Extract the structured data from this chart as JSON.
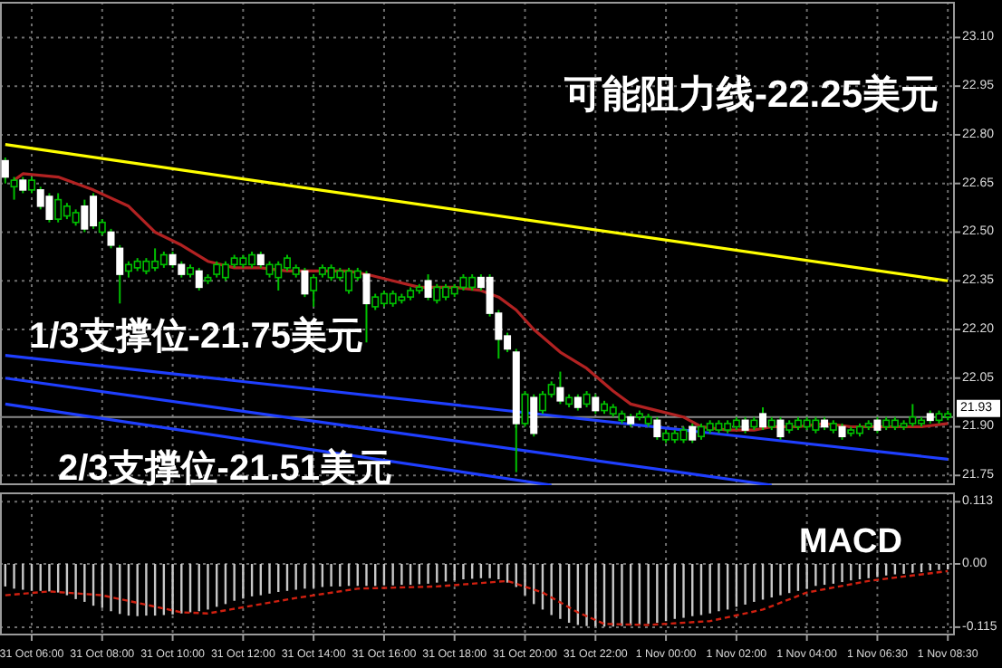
{
  "chart_data": [
    {
      "type": "candlestick",
      "categories": [
        null,
        null,
        null,
        null,
        null,
        null,
        null,
        null,
        null,
        null,
        null,
        null,
        null,
        null,
        null,
        null,
        null,
        null,
        null,
        null,
        null,
        null,
        null,
        null,
        null,
        null,
        null,
        null,
        null,
        null,
        null,
        null,
        null,
        null,
        null,
        null,
        null,
        null,
        null,
        null,
        null,
        null,
        null,
        null,
        null,
        null,
        null,
        null,
        null,
        null,
        null,
        null,
        null,
        null,
        null,
        null,
        null,
        null,
        null,
        null,
        null,
        null,
        null,
        null,
        null,
        null,
        null,
        null,
        null,
        null,
        null,
        null,
        null,
        null,
        null,
        null,
        null,
        null,
        null,
        null,
        null,
        null,
        null,
        null,
        null,
        null,
        null,
        null,
        null,
        null,
        null,
        null,
        null,
        null,
        null,
        null,
        null,
        null,
        null,
        null,
        null,
        null,
        null,
        null,
        null,
        null,
        null,
        null
      ],
      "ohlc": [
        [
          22.72,
          22.73,
          22.65,
          22.67
        ],
        [
          22.64,
          22.67,
          22.6,
          22.66
        ],
        [
          22.66,
          22.67,
          22.62,
          22.63
        ],
        [
          22.63,
          22.67,
          22.62,
          22.66
        ],
        [
          22.63,
          22.64,
          22.57,
          22.58
        ],
        [
          22.61,
          22.62,
          22.53,
          22.54
        ],
        [
          22.54,
          22.62,
          22.53,
          22.6
        ],
        [
          22.55,
          22.59,
          22.54,
          22.58
        ],
        [
          22.53,
          22.57,
          22.52,
          22.56
        ],
        [
          22.58,
          22.6,
          22.5,
          22.51
        ],
        [
          22.61,
          22.62,
          22.51,
          22.52
        ],
        [
          22.5,
          22.54,
          22.49,
          22.53
        ],
        [
          22.5,
          22.51,
          22.45,
          22.46
        ],
        [
          22.45,
          22.46,
          22.28,
          22.37
        ],
        [
          22.38,
          22.41,
          22.36,
          22.4
        ],
        [
          22.39,
          22.42,
          22.38,
          22.41
        ],
        [
          22.38,
          22.42,
          22.37,
          22.41
        ],
        [
          22.39,
          22.45,
          22.38,
          22.41
        ],
        [
          22.4,
          22.44,
          22.39,
          22.43
        ],
        [
          22.43,
          22.44,
          22.39,
          22.4
        ],
        [
          22.4,
          22.41,
          22.36,
          22.37
        ],
        [
          22.37,
          22.4,
          22.36,
          22.39
        ],
        [
          22.38,
          22.39,
          22.32,
          22.33
        ],
        [
          22.35,
          22.37,
          22.34,
          22.36
        ],
        [
          22.37,
          22.41,
          22.36,
          22.4
        ],
        [
          22.36,
          22.41,
          22.35,
          22.4
        ],
        [
          22.4,
          22.43,
          22.39,
          22.42
        ],
        [
          22.4,
          22.43,
          22.39,
          22.42
        ],
        [
          22.4,
          22.44,
          22.39,
          22.43
        ],
        [
          22.43,
          22.44,
          22.39,
          22.4
        ],
        [
          22.37,
          22.41,
          22.36,
          22.4
        ],
        [
          22.36,
          22.41,
          22.32,
          22.4
        ],
        [
          22.39,
          22.43,
          22.38,
          22.42
        ],
        [
          22.37,
          22.4,
          22.36,
          22.39
        ],
        [
          22.38,
          22.39,
          22.3,
          22.31
        ],
        [
          22.32,
          22.37,
          22.27,
          22.36
        ],
        [
          22.37,
          22.4,
          22.36,
          22.39
        ],
        [
          22.36,
          22.4,
          22.35,
          22.39
        ],
        [
          22.36,
          22.39,
          22.35,
          22.38
        ],
        [
          22.32,
          22.39,
          22.31,
          22.38
        ],
        [
          22.36,
          22.39,
          22.35,
          22.38
        ],
        [
          22.37,
          22.38,
          22.16,
          22.28
        ],
        [
          22.27,
          22.31,
          22.26,
          22.3
        ],
        [
          22.28,
          22.32,
          22.27,
          22.31
        ],
        [
          22.28,
          22.32,
          22.27,
          22.31
        ],
        [
          22.29,
          22.31,
          22.28,
          22.3
        ],
        [
          22.3,
          22.33,
          22.29,
          22.32
        ],
        [
          22.32,
          22.34,
          22.31,
          22.33
        ],
        [
          22.35,
          22.37,
          22.29,
          22.3
        ],
        [
          22.29,
          22.34,
          22.28,
          22.33
        ],
        [
          22.3,
          22.34,
          22.29,
          22.33
        ],
        [
          22.31,
          22.34,
          22.3,
          22.33
        ],
        [
          22.33,
          22.37,
          22.32,
          22.36
        ],
        [
          22.33,
          22.37,
          22.32,
          22.36
        ],
        [
          22.36,
          22.37,
          22.32,
          22.33
        ],
        [
          22.36,
          22.37,
          22.24,
          22.25
        ],
        [
          22.25,
          22.26,
          22.11,
          22.17
        ],
        [
          22.18,
          22.19,
          22.13,
          22.14
        ],
        [
          22.13,
          22.14,
          21.76,
          21.91
        ],
        [
          21.91,
          22.01,
          21.9,
          22.0
        ],
        [
          21.99,
          22.0,
          21.87,
          21.88
        ],
        [
          21.95,
          22.01,
          21.94,
          22.0
        ],
        [
          22.0,
          22.04,
          21.99,
          22.03
        ],
        [
          22.02,
          22.07,
          21.97,
          21.98
        ],
        [
          21.97,
          22.0,
          21.96,
          21.99
        ],
        [
          21.99,
          22.0,
          21.95,
          21.96
        ],
        [
          21.97,
          22.01,
          21.96,
          22.0
        ],
        [
          21.99,
          22.0,
          21.94,
          21.95
        ],
        [
          21.95,
          21.98,
          21.94,
          21.97
        ],
        [
          21.94,
          21.97,
          21.93,
          21.96
        ],
        [
          21.92,
          21.95,
          21.91,
          21.94
        ],
        [
          21.93,
          21.94,
          21.9,
          21.91
        ],
        [
          21.93,
          21.95,
          21.92,
          21.94
        ],
        [
          21.91,
          21.94,
          21.9,
          21.93
        ],
        [
          21.92,
          21.93,
          21.86,
          21.87
        ],
        [
          21.86,
          21.89,
          21.85,
          21.88
        ],
        [
          21.86,
          21.89,
          21.85,
          21.88
        ],
        [
          21.86,
          21.9,
          21.85,
          21.89
        ],
        [
          21.9,
          21.91,
          21.85,
          21.86
        ],
        [
          21.87,
          21.91,
          21.86,
          21.9
        ],
        [
          21.89,
          21.92,
          21.88,
          21.91
        ],
        [
          21.89,
          21.92,
          21.88,
          21.91
        ],
        [
          21.89,
          21.92,
          21.88,
          21.91
        ],
        [
          21.9,
          21.93,
          21.89,
          21.92
        ],
        [
          21.92,
          21.93,
          21.88,
          21.89
        ],
        [
          21.9,
          21.93,
          21.89,
          21.92
        ],
        [
          21.94,
          21.96,
          21.89,
          21.9
        ],
        [
          21.9,
          21.93,
          21.89,
          21.92
        ],
        [
          21.92,
          21.93,
          21.86,
          21.87
        ],
        [
          21.89,
          21.92,
          21.88,
          21.91
        ],
        [
          21.9,
          21.93,
          21.89,
          21.92
        ],
        [
          21.9,
          21.93,
          21.89,
          21.92
        ],
        [
          21.89,
          21.93,
          21.88,
          21.92
        ],
        [
          21.92,
          21.93,
          21.89,
          21.9
        ],
        [
          21.89,
          21.92,
          21.88,
          21.91
        ],
        [
          21.9,
          21.91,
          21.86,
          21.87
        ],
        [
          21.88,
          21.9,
          21.87,
          21.89
        ],
        [
          21.88,
          21.91,
          21.87,
          21.9
        ],
        [
          21.9,
          21.92,
          21.89,
          21.91
        ],
        [
          21.92,
          21.93,
          21.88,
          21.89
        ],
        [
          21.9,
          21.93,
          21.89,
          21.92
        ],
        [
          21.9,
          21.93,
          21.89,
          21.92
        ],
        [
          21.9,
          21.92,
          21.89,
          21.91
        ],
        [
          21.91,
          21.97,
          21.9,
          21.93
        ],
        [
          21.91,
          21.93,
          21.9,
          21.92
        ],
        [
          21.94,
          21.95,
          21.91,
          21.92
        ],
        [
          21.92,
          21.95,
          21.91,
          21.94
        ],
        [
          21.93,
          21.95,
          21.92,
          21.94
        ]
      ],
      "series": [
        {
          "type": "line",
          "color": "#b22222",
          "values": [
            null,
            22.66,
            22.68,
            null,
            null,
            null,
            22.67,
            null,
            null,
            null,
            22.63,
            null,
            null,
            null,
            22.58,
            null,
            null,
            22.5,
            null,
            null,
            22.46,
            null,
            null,
            22.41,
            null,
            null,
            22.39,
            null,
            null,
            22.39,
            null,
            null,
            22.38,
            null,
            null,
            22.38,
            null,
            null,
            null,
            22.38,
            null,
            22.37,
            null,
            null,
            22.35,
            null,
            null,
            22.33,
            null,
            null,
            null,
            22.33,
            null,
            null,
            22.32,
            null,
            22.3,
            null,
            22.26,
            null,
            22.2,
            null,
            null,
            22.13,
            null,
            null,
            22.08,
            null,
            null,
            22.01,
            null,
            21.97,
            null,
            null,
            21.95,
            null,
            null,
            21.93,
            null,
            21.9,
            null,
            null,
            21.89,
            null,
            null,
            21.89,
            null,
            21.9,
            null,
            null,
            21.9,
            null,
            null,
            21.91,
            null,
            null,
            21.9,
            null,
            21.9,
            null,
            null,
            21.9,
            null,
            null,
            21.9,
            null,
            null,
            21.91
          ]
        },
        {
          "type": "line",
          "color": "#ffff00",
          "values": [
            22.77,
            null,
            null,
            null,
            null,
            null,
            null,
            null,
            null,
            null,
            null,
            null,
            null,
            null,
            null,
            null,
            null,
            null,
            null,
            null,
            null,
            null,
            null,
            null,
            null,
            null,
            null,
            null,
            null,
            null,
            null,
            null,
            null,
            null,
            null,
            null,
            null,
            null,
            null,
            null,
            null,
            null,
            null,
            null,
            null,
            null,
            null,
            null,
            null,
            null,
            null,
            null,
            null,
            null,
            null,
            null,
            null,
            null,
            null,
            null,
            null,
            null,
            null,
            null,
            null,
            null,
            null,
            null,
            null,
            null,
            null,
            null,
            null,
            null,
            null,
            null,
            null,
            null,
            null,
            null,
            null,
            null,
            null,
            null,
            null,
            null,
            null,
            null,
            null,
            null,
            null,
            null,
            null,
            null,
            null,
            null,
            null,
            null,
            null,
            null,
            null,
            null,
            null,
            null,
            null,
            null,
            null,
            22.35
          ]
        },
        {
          "type": "line",
          "color": "#1f3fff",
          "values": [
            22.12,
            null,
            null,
            null,
            null,
            null,
            null,
            null,
            null,
            null,
            null,
            null,
            null,
            null,
            null,
            null,
            null,
            null,
            null,
            null,
            null,
            null,
            null,
            null,
            null,
            null,
            null,
            null,
            null,
            null,
            null,
            null,
            null,
            null,
            null,
            null,
            null,
            null,
            null,
            null,
            null,
            null,
            null,
            null,
            null,
            null,
            null,
            null,
            null,
            null,
            null,
            null,
            null,
            null,
            null,
            null,
            null,
            null,
            null,
            null,
            null,
            null,
            null,
            null,
            null,
            null,
            null,
            null,
            null,
            null,
            null,
            null,
            null,
            null,
            null,
            null,
            null,
            null,
            null,
            null,
            null,
            null,
            null,
            null,
            null,
            null,
            null,
            null,
            null,
            null,
            null,
            null,
            null,
            null,
            null,
            null,
            null,
            null,
            null,
            null,
            null,
            null,
            null,
            null,
            null,
            null,
            null,
            21.8
          ]
        },
        {
          "type": "line",
          "color": "#1f3fff",
          "values": [
            22.05,
            null,
            null,
            null,
            null,
            null,
            null,
            null,
            null,
            null,
            null,
            null,
            null,
            null,
            null,
            null,
            null,
            null,
            null,
            null,
            null,
            null,
            null,
            null,
            null,
            null,
            null,
            null,
            null,
            null,
            null,
            null,
            null,
            null,
            null,
            null,
            null,
            null,
            null,
            null,
            null,
            null,
            null,
            null,
            null,
            null,
            null,
            null,
            null,
            null,
            null,
            null,
            null,
            null,
            null,
            null,
            null,
            null,
            null,
            null,
            null,
            null,
            null,
            null,
            null,
            null,
            null,
            null,
            null,
            null,
            null,
            null,
            null,
            null,
            null,
            null,
            null,
            null,
            null,
            null,
            null,
            null,
            null,
            null,
            null,
            null,
            null,
            21.72,
            null,
            null,
            null,
            null,
            null,
            null,
            null,
            null,
            null,
            null,
            null,
            null,
            null,
            null,
            null,
            null,
            null,
            null,
            null,
            null
          ]
        },
        {
          "type": "line",
          "color": "#1f3fff",
          "values": [
            21.97,
            null,
            null,
            null,
            null,
            null,
            null,
            null,
            null,
            null,
            null,
            null,
            null,
            null,
            null,
            null,
            null,
            null,
            null,
            null,
            null,
            null,
            null,
            null,
            null,
            null,
            null,
            null,
            null,
            null,
            null,
            null,
            null,
            null,
            null,
            null,
            null,
            null,
            null,
            null,
            null,
            null,
            null,
            null,
            null,
            null,
            null,
            null,
            null,
            null,
            null,
            null,
            null,
            null,
            null,
            null,
            null,
            null,
            null,
            null,
            null,
            null,
            21.72,
            null,
            null,
            null,
            null,
            null,
            null,
            null,
            null,
            null,
            null,
            null,
            null,
            null,
            null,
            null,
            null,
            null,
            null,
            null,
            null,
            null,
            null,
            null,
            null,
            null,
            null,
            null,
            null,
            null,
            null,
            null,
            null,
            null,
            null,
            null,
            null,
            null,
            null,
            null,
            null,
            null,
            null,
            null,
            null,
            null
          ]
        }
      ],
      "ylim": [
        21.72,
        23.21
      ],
      "yticks": [
        21.75,
        {
          "value": 21.9,
          "label": "21.90"
        },
        22.05,
        {
          "value": 22.2,
          "label": "22.20"
        },
        22.35,
        {
          "value": 22.5,
          "label": "22.50"
        },
        22.65,
        {
          "value": 22.8,
          "label": "22.80"
        },
        22.95,
        {
          "value": 23.1,
          "label": "23.10"
        }
      ],
      "ref_lines": [
        {
          "axis": "y",
          "value": 21.93,
          "label": "21.93",
          "color": "#8a8a8a"
        }
      ],
      "annotations": [
        "可能阻力线-22.25美元",
        "1/3支撑位-21.75美元",
        "2/3支撑位-21.51美元"
      ],
      "grid": true,
      "tick_labels": "y"
    },
    {
      "type": "bar",
      "categories": [
        null,
        null,
        null,
        "31 Oct 06:00",
        null,
        null,
        null,
        null,
        null,
        null,
        null,
        "31 Oct 08:00",
        null,
        null,
        null,
        null,
        null,
        null,
        null,
        "31 Oct 10:00",
        null,
        null,
        null,
        null,
        null,
        null,
        null,
        "31 Oct 12:00",
        null,
        null,
        null,
        null,
        null,
        null,
        null,
        "31 Oct 14:00",
        null,
        null,
        null,
        null,
        null,
        null,
        null,
        "31 Oct 16:00",
        null,
        null,
        null,
        null,
        null,
        null,
        null,
        "31 Oct 18:00",
        null,
        null,
        null,
        null,
        null,
        null,
        null,
        "31 Oct 20:00",
        null,
        null,
        null,
        null,
        null,
        null,
        null,
        "31 Oct 22:00",
        null,
        null,
        null,
        null,
        null,
        null,
        null,
        "1 Nov 00:00",
        null,
        null,
        null,
        null,
        null,
        null,
        null,
        "1 Nov 02:00",
        null,
        null,
        null,
        null,
        null,
        null,
        null,
        "1 Nov 04:00",
        null,
        null,
        null,
        null,
        null,
        null,
        null,
        "1 Nov 06:30",
        null,
        null,
        null,
        null,
        null,
        null,
        null,
        "1 Nov 08:30"
      ],
      "series": [
        {
          "type": "bar",
          "color": "#c8c8c8",
          "values": [
            -0.041,
            -0.045,
            -0.047,
            -0.049,
            -0.049,
            -0.05,
            -0.052,
            -0.057,
            -0.064,
            -0.069,
            -0.076,
            -0.08,
            -0.086,
            -0.091,
            -0.094,
            -0.095,
            -0.094,
            -0.094,
            -0.093,
            -0.092,
            -0.09,
            -0.088,
            -0.086,
            -0.083,
            -0.078,
            -0.073,
            -0.067,
            -0.063,
            -0.059,
            -0.057,
            -0.054,
            -0.051,
            -0.049,
            -0.047,
            -0.045,
            -0.044,
            -0.042,
            -0.041,
            -0.041,
            -0.04,
            -0.04,
            -0.04,
            -0.04,
            -0.039,
            -0.039,
            -0.038,
            -0.038,
            -0.037,
            -0.036,
            -0.034,
            -0.032,
            -0.03,
            -0.028,
            -0.027,
            -0.026,
            -0.026,
            -0.028,
            -0.034,
            -0.042,
            -0.057,
            -0.073,
            -0.083,
            -0.093,
            -0.1,
            -0.107,
            -0.111,
            -0.113,
            -0.114,
            -0.114,
            -0.114,
            -0.113,
            -0.112,
            -0.111,
            -0.109,
            -0.107,
            -0.104,
            -0.1,
            -0.098,
            -0.095,
            -0.093,
            -0.09,
            -0.086,
            -0.083,
            -0.078,
            -0.074,
            -0.069,
            -0.065,
            -0.061,
            -0.057,
            -0.053,
            -0.049,
            -0.045,
            -0.04,
            -0.038,
            -0.036,
            -0.033,
            -0.03,
            -0.028,
            -0.026,
            -0.024,
            -0.021,
            -0.019,
            -0.018,
            -0.016,
            -0.015,
            -0.012,
            -0.011,
            -0.01
          ]
        },
        {
          "type": "line",
          "color": "#d02010",
          "line_style": "dashed",
          "values": [
            -0.057,
            null,
            null,
            null,
            null,
            -0.05,
            null,
            null,
            null,
            null,
            null,
            -0.057,
            null,
            null,
            null,
            null,
            null,
            null,
            null,
            null,
            -0.088,
            null,
            null,
            -0.09,
            null,
            null,
            null,
            null,
            null,
            null,
            null,
            null,
            null,
            -0.062,
            null,
            null,
            null,
            null,
            null,
            null,
            -0.045,
            null,
            null,
            null,
            null,
            null,
            null,
            null,
            null,
            -0.041,
            null,
            null,
            null,
            null,
            null,
            null,
            null,
            -0.031,
            null,
            null,
            null,
            -0.052,
            null,
            null,
            null,
            -0.088,
            null,
            null,
            -0.109,
            null,
            null,
            null,
            null,
            -0.111,
            null,
            null,
            null,
            null,
            null,
            null,
            -0.104,
            null,
            null,
            null,
            null,
            null,
            -0.083,
            null,
            null,
            null,
            null,
            -0.052,
            null,
            null,
            null,
            null,
            null,
            null,
            -0.031,
            null,
            null,
            null,
            null,
            -0.021,
            null,
            null,
            null,
            -0.013
          ]
        }
      ],
      "ylim": [
        -0.13,
        0.13
      ],
      "yticks": [
        0.113,
        {
          "value": 0,
          "label": "0.00"
        },
        -0.115
      ],
      "annotations": [
        "MACD"
      ],
      "grid": true
    }
  ]
}
